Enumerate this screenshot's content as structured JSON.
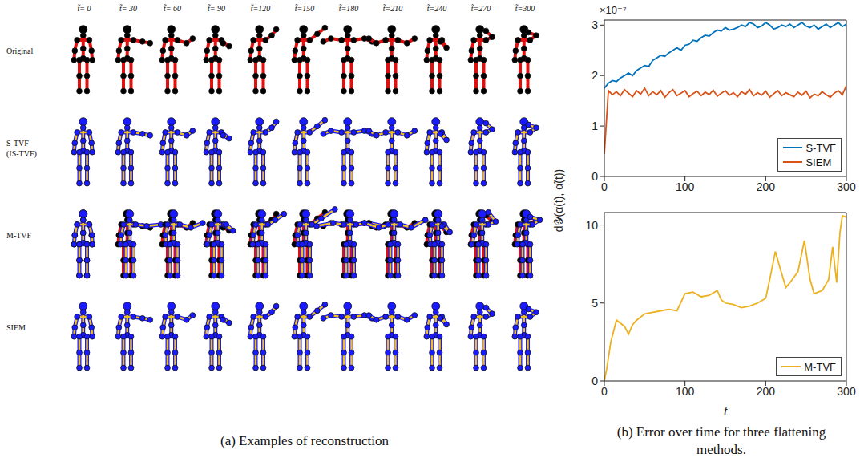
{
  "panel_a": {
    "caption": "(a) Examples of reconstruction",
    "column_labels": [
      "t̃= 0",
      "t̃= 30",
      "t̃= 60",
      "t̃= 90",
      "t̃=120",
      "t̃=150",
      "t̃=180",
      "t̃=210",
      "t̃=240",
      "t̃=270",
      "t̃=300"
    ],
    "rows": [
      {
        "label": "Original"
      },
      {
        "label": "S-TVF",
        "sublabel": "(IS-TVF)"
      },
      {
        "label": "M-TVF"
      },
      {
        "label": "SIEM"
      }
    ]
  },
  "caption_b": "(b) Error over time for three flattening methods.",
  "shared_ylabel": "d𝒴(α(t), α̃(t))",
  "chart_data": [
    {
      "type": "line",
      "y_multiplier": "×10⁻⁷",
      "xlim": [
        0,
        300
      ],
      "xticks": [
        0,
        100,
        200,
        300
      ],
      "ylim": [
        0,
        3.1
      ],
      "yticks": [
        0,
        1,
        2,
        3
      ],
      "grid": false,
      "legend": "lower right",
      "x": [
        0,
        5,
        10,
        15,
        20,
        25,
        30,
        35,
        40,
        45,
        50,
        55,
        60,
        65,
        70,
        75,
        80,
        85,
        90,
        95,
        100,
        105,
        110,
        115,
        120,
        125,
        130,
        135,
        140,
        145,
        150,
        155,
        160,
        165,
        170,
        175,
        180,
        185,
        190,
        195,
        200,
        205,
        210,
        215,
        220,
        225,
        230,
        235,
        240,
        245,
        250,
        255,
        260,
        265,
        270,
        275,
        280,
        285,
        290,
        295,
        300
      ],
      "series": [
        {
          "name": "S-TVF",
          "color": "#0072bd",
          "values": [
            1.75,
            1.85,
            1.9,
            1.88,
            1.95,
            2.0,
            2.05,
            2.0,
            2.1,
            2.15,
            2.2,
            2.18,
            2.3,
            2.35,
            2.4,
            2.38,
            2.45,
            2.5,
            2.55,
            2.5,
            2.6,
            2.62,
            2.7,
            2.68,
            2.75,
            2.8,
            2.78,
            2.85,
            2.9,
            2.88,
            2.95,
            2.9,
            2.92,
            2.95,
            3.0,
            2.97,
            3.05,
            3.02,
            2.95,
            2.98,
            3.05,
            3.0,
            2.92,
            2.95,
            3.0,
            2.97,
            3.02,
            2.95,
            3.0,
            3.05,
            2.98,
            2.95,
            3.0,
            2.92,
            2.97,
            3.02,
            2.95,
            3.0,
            3.05,
            2.97,
            3.02
          ]
        },
        {
          "name": "SIEM",
          "color": "#d95319",
          "values": [
            0.45,
            1.7,
            1.62,
            1.68,
            1.6,
            1.72,
            1.65,
            1.58,
            1.7,
            1.63,
            1.75,
            1.6,
            1.68,
            1.62,
            1.7,
            1.57,
            1.66,
            1.72,
            1.6,
            1.65,
            1.7,
            1.58,
            1.64,
            1.69,
            1.6,
            1.67,
            1.62,
            1.71,
            1.59,
            1.65,
            1.7,
            1.61,
            1.66,
            1.58,
            1.68,
            1.63,
            1.72,
            1.6,
            1.66,
            1.61,
            1.69,
            1.57,
            1.64,
            1.7,
            1.6,
            1.66,
            1.62,
            1.58,
            1.67,
            1.61,
            1.69,
            1.56,
            1.63,
            1.6,
            1.68,
            1.62,
            1.57,
            1.65,
            1.7,
            1.62,
            1.8
          ]
        }
      ]
    },
    {
      "type": "line",
      "xlabel": "t",
      "xlim": [
        0,
        300
      ],
      "xticks": [
        0,
        100,
        200,
        300
      ],
      "ylim": [
        0,
        10.8
      ],
      "yticks": [
        0,
        5,
        10
      ],
      "grid": false,
      "legend": "lower right",
      "x": [
        0,
        3,
        8,
        15,
        20,
        25,
        30,
        35,
        40,
        50,
        60,
        70,
        80,
        90,
        100,
        110,
        120,
        130,
        140,
        145,
        150,
        160,
        170,
        180,
        190,
        200,
        205,
        212,
        218,
        225,
        230,
        240,
        248,
        255,
        260,
        270,
        278,
        283,
        288,
        292,
        295,
        300
      ],
      "series": [
        {
          "name": "M-TVF",
          "color": "#edb120",
          "values": [
            0,
            0.8,
            2.5,
            3.9,
            3.7,
            3.5,
            3.0,
            3.6,
            3.9,
            4.3,
            4.4,
            4.5,
            4.6,
            4.5,
            5.6,
            5.7,
            5.4,
            5.5,
            5.8,
            5.2,
            5.0,
            4.9,
            4.7,
            4.8,
            5.0,
            5.3,
            6.5,
            8.3,
            7.2,
            6.0,
            6.3,
            7.0,
            9.0,
            6.5,
            5.6,
            5.8,
            6.5,
            8.6,
            6.3,
            9.5,
            10.6,
            10.5
          ]
        }
      ]
    }
  ]
}
